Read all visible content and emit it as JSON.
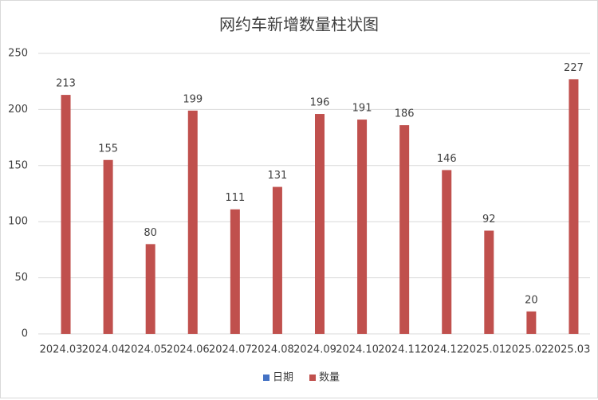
{
  "chart_data": {
    "type": "bar",
    "title": "网约车新增数量柱状图",
    "categories": [
      "2024.03",
      "2024.04",
      "2024.05",
      "2024.06",
      "2024.07",
      "2024.08",
      "2024.09",
      "2024.10",
      "2024.11",
      "2024.12",
      "2025.01",
      "2025.02",
      "2025.03"
    ],
    "series": [
      {
        "name": "日期",
        "color": "#4472c4",
        "values": [
          null,
          null,
          null,
          null,
          null,
          null,
          null,
          null,
          null,
          null,
          null,
          null,
          null
        ]
      },
      {
        "name": "数量",
        "color": "#c0504d",
        "values": [
          213,
          155,
          80,
          199,
          111,
          131,
          196,
          191,
          186,
          146,
          92,
          20,
          227
        ]
      }
    ],
    "ylim": [
      0,
      250
    ],
    "yticks": [
      0,
      50,
      100,
      150,
      200,
      250
    ],
    "grid": true,
    "legend": "bottom"
  }
}
